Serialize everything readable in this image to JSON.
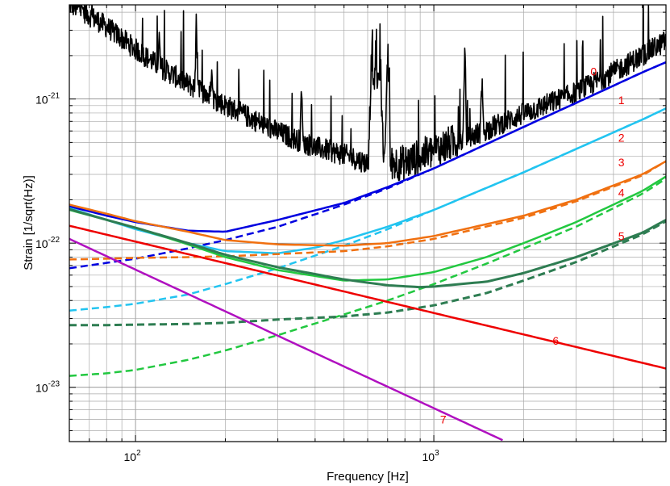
{
  "chart_data": {
    "type": "line",
    "xlabel": "Frequency [Hz]",
    "ylabel": "Strain [1/sqrt(Hz)]",
    "xscale": "log",
    "yscale": "log",
    "xlim": [
      60,
      6000
    ],
    "ylim": [
      4.2e-24,
      4.5e-21
    ],
    "grid": true,
    "x_ticks": [
      {
        "value": 100,
        "base": "10",
        "exp": "2"
      },
      {
        "value": 1000,
        "base": "10",
        "exp": "3"
      }
    ],
    "y_ticks": [
      {
        "value": 1e-23,
        "base": "10",
        "exp": "-23"
      },
      {
        "value": 1e-22,
        "base": "10",
        "exp": "-22"
      },
      {
        "value": 1e-21,
        "base": "10",
        "exp": "-21"
      }
    ],
    "series": [
      {
        "id": "measured",
        "color": "#000000",
        "dash": "solid",
        "width": 2.2,
        "noise": true,
        "x": [
          60,
          65,
          70,
          75,
          80,
          90,
          100,
          120,
          150,
          200,
          250,
          300,
          400,
          500,
          600,
          800,
          1000,
          1500,
          2000,
          3000,
          4000,
          5000,
          6000
        ],
        "y": [
          4.3e-21,
          4e-21,
          3.6e-21,
          3.3e-21,
          3e-21,
          2.5e-21,
          2.1e-21,
          1.6e-21,
          1.2e-21,
          8.6e-22,
          6.8e-22,
          5.6e-22,
          4.4e-22,
          3.9e-22,
          3.4e-22,
          3.3e-22,
          4e-22,
          5.8e-22,
          7.5e-22,
          1.05e-21,
          1.45e-21,
          1.9e-21,
          2.4e-21
        ],
        "spikes": [
          {
            "x": 620,
            "y": 4.5e-21,
            "w": 0.012
          },
          {
            "x": 660,
            "y": 4.5e-21,
            "w": 0.012
          },
          {
            "x": 700,
            "y": 4.5e-21,
            "w": 0.01
          },
          {
            "x": 640,
            "y": 4.5e-21,
            "w": 0.01
          },
          {
            "x": 1270,
            "y": 3e-21,
            "w": 0.006
          },
          {
            "x": 1450,
            "y": 1.6e-21,
            "w": 0.006
          },
          {
            "x": 160,
            "y": 4.5e-21,
            "w": 0.006
          },
          {
            "x": 360,
            "y": 1.6e-21,
            "w": 0.005
          },
          {
            "x": 66,
            "y": 4.5e-21,
            "w": 0.005
          },
          {
            "x": 120,
            "y": 3.2e-21,
            "w": 0.005
          },
          {
            "x": 180,
            "y": 2e-21,
            "w": 0.005
          }
        ]
      },
      {
        "id": "c1-total",
        "color": "#0000e0",
        "dash": "solid",
        "width": 2.5,
        "x": [
          60,
          80,
          100,
          150,
          200,
          300,
          500,
          700,
          1000,
          2000,
          3000,
          5000,
          6000
        ],
        "y": [
          1.8e-22,
          1.55e-22,
          1.4e-22,
          1.22e-22,
          1.2e-22,
          1.45e-22,
          1.9e-22,
          2.45e-22,
          3.3e-22,
          6.4e-22,
          9.4e-22,
          1.53e-21,
          1.8e-21
        ]
      },
      {
        "id": "c1-quantum",
        "color": "#0000e0",
        "dash": "dashed",
        "width": 2.5,
        "x": [
          60,
          80,
          100,
          150,
          200,
          300,
          500,
          700,
          1000,
          2000,
          3000,
          5000,
          6000
        ],
        "y": [
          6.7e-23,
          7.3e-23,
          7.8e-23,
          9.2e-23,
          1.05e-22,
          1.3e-22,
          1.85e-22,
          2.4e-22,
          3.3e-22,
          6.4e-22,
          9.4e-22,
          1.53e-21,
          1.8e-21
        ]
      },
      {
        "id": "c2-total",
        "color": "#22c4f0",
        "dash": "solid",
        "width": 2.5,
        "x": [
          60,
          80,
          100,
          150,
          200,
          300,
          400,
          500,
          700,
          1000,
          2000,
          3000,
          5000,
          6000
        ],
        "y": [
          1.75e-22,
          1.45e-22,
          1.25e-22,
          1e-22,
          8.8e-23,
          8.5e-23,
          9.3e-23,
          1.05e-22,
          1.3e-22,
          1.7e-22,
          3.1e-22,
          4.5e-22,
          7.2e-22,
          8.6e-22
        ]
      },
      {
        "id": "c2-quantum",
        "color": "#22c4f0",
        "dash": "dashed",
        "width": 2.5,
        "x": [
          60,
          80,
          100,
          150,
          200,
          300,
          400,
          500,
          700,
          1000,
          2000,
          3000,
          5000,
          6000
        ],
        "y": [
          3.4e-23,
          3.6e-23,
          3.8e-23,
          4.4e-23,
          5.2e-23,
          6.7e-23,
          8.2e-23,
          9.6e-23,
          1.25e-22,
          1.7e-22,
          3.1e-22,
          4.5e-22,
          7.2e-22,
          8.6e-22
        ]
      },
      {
        "id": "c3-total",
        "color": "#f07010",
        "dash": "solid",
        "width": 2.5,
        "x": [
          60,
          80,
          100,
          150,
          200,
          300,
          500,
          700,
          1000,
          2000,
          3000,
          5000,
          6000
        ],
        "y": [
          1.85e-22,
          1.6e-22,
          1.42e-22,
          1.2e-22,
          1.05e-22,
          9.8e-23,
          9.6e-23,
          1e-22,
          1.12e-22,
          1.55e-22,
          2e-22,
          3e-22,
          3.7e-22
        ]
      },
      {
        "id": "c3-quantum",
        "color": "#f07010",
        "dash": "dashed",
        "width": 2.5,
        "x": [
          60,
          80,
          100,
          150,
          200,
          300,
          500,
          700,
          1000,
          2000,
          3000,
          5000,
          6000
        ],
        "y": [
          7.7e-23,
          7.8e-23,
          7.9e-23,
          8e-23,
          8.1e-23,
          8.4e-23,
          8.8e-23,
          9.5e-23,
          1.07e-22,
          1.5e-22,
          1.95e-22,
          2.95e-22,
          3.7e-22
        ]
      },
      {
        "id": "c4-total",
        "color": "#22c840",
        "dash": "solid",
        "width": 2.5,
        "x": [
          60,
          80,
          100,
          150,
          200,
          300,
          500,
          700,
          1000,
          1500,
          2000,
          3000,
          5000,
          6000
        ],
        "y": [
          1.7e-22,
          1.45e-22,
          1.28e-22,
          9.8e-23,
          8e-23,
          6.5e-23,
          5.5e-23,
          5.6e-23,
          6.3e-23,
          8e-23,
          1e-22,
          1.4e-22,
          2.3e-22,
          2.9e-22
        ]
      },
      {
        "id": "c4-quantum",
        "color": "#22c840",
        "dash": "dashed",
        "width": 2.5,
        "x": [
          60,
          80,
          100,
          150,
          200,
          300,
          500,
          700,
          1000,
          1500,
          2000,
          3000,
          5000,
          6000
        ],
        "y": [
          1.2e-23,
          1.25e-23,
          1.32e-23,
          1.55e-23,
          1.8e-23,
          2.3e-23,
          3.2e-23,
          4e-23,
          5.2e-23,
          7.2e-23,
          9.2e-23,
          1.3e-22,
          2.2e-22,
          2.8e-22
        ]
      },
      {
        "id": "c5-total",
        "color": "#2e7d52",
        "dash": "solid",
        "width": 3,
        "x": [
          60,
          80,
          100,
          150,
          200,
          300,
          500,
          700,
          900,
          1000,
          1500,
          2000,
          3000,
          5000,
          6000
        ],
        "y": [
          1.72e-22,
          1.45e-22,
          1.28e-22,
          1e-22,
          8.3e-23,
          6.8e-23,
          5.6e-23,
          5.1e-23,
          4.95e-23,
          5e-23,
          5.4e-23,
          6.2e-23,
          8e-23,
          1.18e-22,
          1.45e-22
        ]
      },
      {
        "id": "c5-quantum",
        "color": "#2e7d52",
        "dash": "dashed",
        "width": 3,
        "x": [
          60,
          80,
          100,
          150,
          200,
          300,
          500,
          700,
          1000,
          1500,
          2000,
          3000,
          5000,
          6000
        ],
        "y": [
          2.7e-23,
          2.7e-23,
          2.72e-23,
          2.75e-23,
          2.8e-23,
          2.95e-23,
          3.1e-23,
          3.3e-23,
          3.7e-23,
          4.5e-23,
          5.5e-23,
          7.4e-23,
          1.15e-22,
          1.42e-22
        ]
      },
      {
        "id": "c6",
        "color": "#ee0000",
        "dash": "solid",
        "width": 2.5,
        "x": [
          60,
          6000
        ],
        "y": [
          1.32e-22,
          1.35e-23
        ]
      },
      {
        "id": "c7",
        "color": "#b010c0",
        "dash": "solid",
        "width": 2.5,
        "x": [
          60,
          1700
        ],
        "y": [
          1.07e-22,
          4.3e-24
        ]
      }
    ],
    "curve_labels": [
      {
        "text": "0",
        "x": 3350,
        "y": 1.55e-21,
        "color": "#ee0000"
      },
      {
        "text": "1",
        "x": 4150,
        "y": 9.8e-22,
        "color": "#ee0000"
      },
      {
        "text": "2",
        "x": 4150,
        "y": 5.4e-22,
        "color": "#ee0000"
      },
      {
        "text": "3",
        "x": 4150,
        "y": 3.65e-22,
        "color": "#ee0000"
      },
      {
        "text": "4",
        "x": 4150,
        "y": 2.25e-22,
        "color": "#ee0000"
      },
      {
        "text": "5",
        "x": 4150,
        "y": 1.12e-22,
        "color": "#ee0000"
      },
      {
        "text": "6",
        "x": 2500,
        "y": 2.1e-23,
        "color": "#ee0000"
      },
      {
        "text": "7",
        "x": 1050,
        "y": 6e-24,
        "color": "#ee0000"
      }
    ]
  }
}
